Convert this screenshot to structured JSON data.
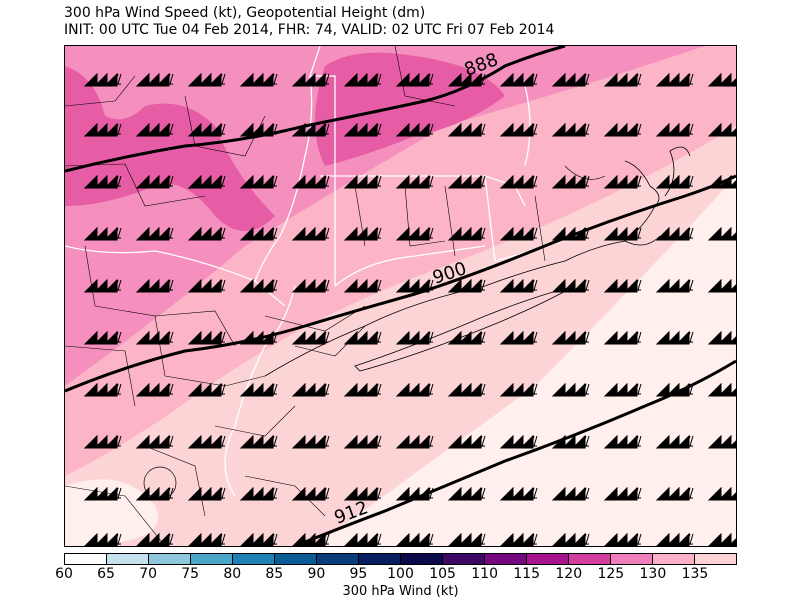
{
  "header": {
    "title": "300 hPa Wind Speed (kt), Geopotential Height (dm)",
    "subtitle": "INIT: 00 UTC Tue 04 Feb 2014, FHR: 74, VALID: 02 UTC Fri 07 Feb 2014"
  },
  "map": {
    "contour_labels": [
      "888",
      "900",
      "912"
    ],
    "shading_colors": {
      "lowest": "#fff0ee",
      "low": "#fcd4d6",
      "mid": "#fbb5c6",
      "high": "#f58fbe",
      "highest": "#e65da5"
    },
    "barb_icon": "wind-barb-icon",
    "border_colors": {
      "state": "#ffffff",
      "county": "#000000"
    }
  },
  "colorbar": {
    "label": "300 hPa Wind (kt)",
    "ticks": [
      "60",
      "65",
      "70",
      "75",
      "80",
      "85",
      "90",
      "95",
      "100",
      "105",
      "110",
      "115",
      "120",
      "125",
      "130",
      "135"
    ],
    "colors": [
      "#ffffff",
      "#c6e2ef",
      "#8fc8dd",
      "#4aa7c9",
      "#1e83b4",
      "#0b5d97",
      "#083c7a",
      "#071f5f",
      "#0c0a4d",
      "#3d0766",
      "#75087e",
      "#a8148f",
      "#d23f9e",
      "#ef7fba",
      "#fbb1c8",
      "#fdd3d6"
    ]
  }
}
